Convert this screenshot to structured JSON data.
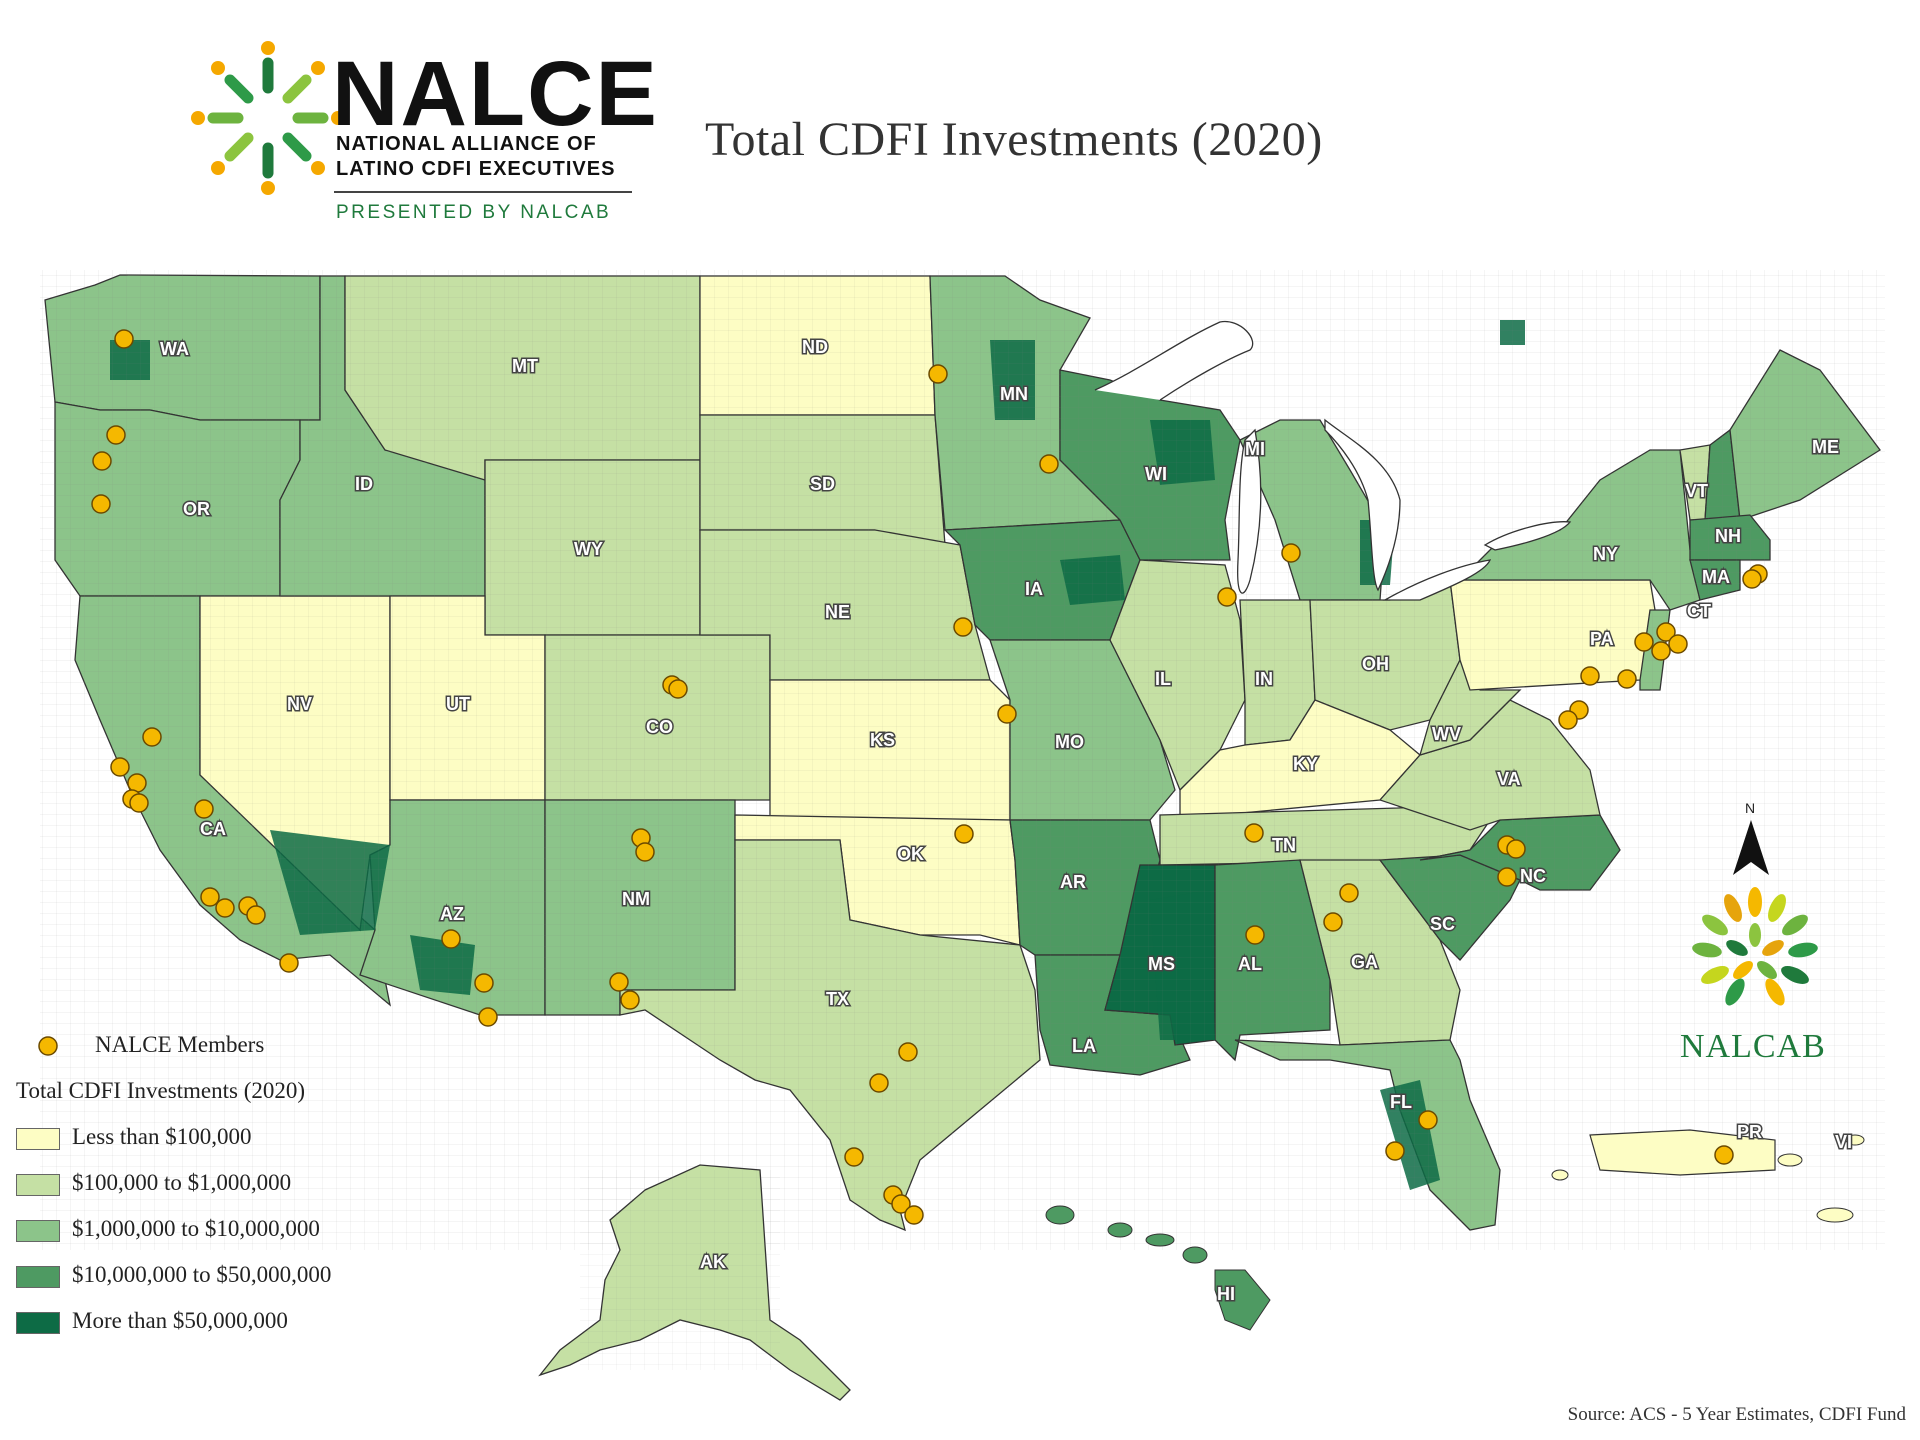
{
  "title": "Total CDFI Investments (2020)",
  "logo": {
    "word": "NALCE",
    "line1": "NATIONAL ALLIANCE OF",
    "line2": "LATINO CDFI EXECUTIVES",
    "presented": "PRESENTED BY NALCAB"
  },
  "legend": {
    "members_label": "NALCE Members",
    "heading": "Total CDFI Investments (2020)",
    "classes": [
      {
        "label": "Less than $100,000",
        "color": "#fdfdc4"
      },
      {
        "label": "$100,000 to $1,000,000",
        "color": "#c5e0a4"
      },
      {
        "label": "$1,000,000 to $10,000,000",
        "color": "#8cc48a"
      },
      {
        "label": "$10,000,000 to $50,000,000",
        "color": "#4e9a62"
      },
      {
        "label": "More than $50,000,000",
        "color": "#0d6b45"
      }
    ]
  },
  "member_color": "#f5b800",
  "states": [
    "WA",
    "OR",
    "CA",
    "NV",
    "ID",
    "MT",
    "WY",
    "UT",
    "AZ",
    "NM",
    "CO",
    "ND",
    "SD",
    "NE",
    "KS",
    "OK",
    "TX",
    "MN",
    "IA",
    "MO",
    "AR",
    "LA",
    "WI",
    "IL",
    "MS",
    "MI",
    "IN",
    "KY",
    "TN",
    "AL",
    "OH",
    "WV",
    "GA",
    "FL",
    "SC",
    "NC",
    "VA",
    "PA",
    "NY",
    "VT",
    "NH",
    "ME",
    "MA",
    "CT",
    "AK",
    "HI",
    "PR",
    "VI"
  ],
  "north": "N",
  "nalcab": "NALCAB",
  "source": "Source: ACS - 5 Year Estimates, CDFI Fund"
}
